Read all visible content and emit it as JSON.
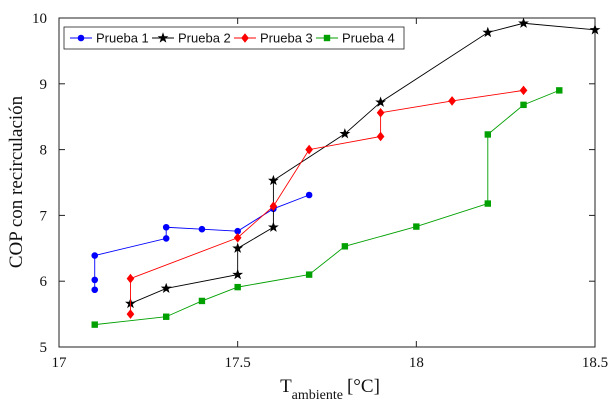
{
  "chart_data": {
    "type": "line",
    "xlabel": "T",
    "xlabel_subscript": "ambiente",
    "xlabel_unit": "[°C]",
    "ylabel": "COP con recirculación",
    "xlim": [
      17,
      18.5
    ],
    "ylim": [
      5,
      10
    ],
    "xticks": [
      "17",
      "17.5",
      "18",
      "18.5"
    ],
    "yticks": [
      "5",
      "6",
      "7",
      "8",
      "9",
      "10"
    ],
    "grid": false,
    "legend_position": "top-left",
    "series": [
      {
        "name": "Prueba 1",
        "color": "#0000ff",
        "marker": "circle",
        "points": [
          [
            17.1,
            5.87
          ],
          [
            17.1,
            6.02
          ],
          [
            17.1,
            6.39
          ],
          [
            17.3,
            6.65
          ],
          [
            17.3,
            6.82
          ],
          [
            17.4,
            6.79
          ],
          [
            17.5,
            6.76
          ],
          [
            17.6,
            7.1
          ],
          [
            17.7,
            7.31
          ]
        ]
      },
      {
        "name": "Prueba 2",
        "color": "#000000",
        "marker": "star",
        "points": [
          [
            17.2,
            5.66
          ],
          [
            17.3,
            5.89
          ],
          [
            17.5,
            6.1
          ],
          [
            17.5,
            6.5
          ],
          [
            17.6,
            6.82
          ],
          [
            17.6,
            7.53
          ],
          [
            17.8,
            8.24
          ],
          [
            17.9,
            8.72
          ],
          [
            18.2,
            9.78
          ],
          [
            18.3,
            9.92
          ],
          [
            18.5,
            9.82
          ]
        ]
      },
      {
        "name": "Prueba 3",
        "color": "#ff0000",
        "marker": "diamond",
        "points": [
          [
            17.2,
            5.5
          ],
          [
            17.2,
            6.04
          ],
          [
            17.5,
            6.66
          ],
          [
            17.6,
            7.14
          ],
          [
            17.7,
            8.0
          ],
          [
            17.9,
            8.2
          ],
          [
            17.9,
            8.56
          ],
          [
            18.1,
            8.74
          ],
          [
            18.3,
            8.9
          ]
        ]
      },
      {
        "name": "Prueba 4",
        "color": "#00a000",
        "marker": "square",
        "points": [
          [
            17.1,
            5.34
          ],
          [
            17.3,
            5.46
          ],
          [
            17.4,
            5.7
          ],
          [
            17.5,
            5.91
          ],
          [
            17.7,
            6.1
          ],
          [
            17.8,
            6.53
          ],
          [
            18.0,
            6.83
          ],
          [
            18.2,
            7.18
          ],
          [
            18.2,
            8.23
          ],
          [
            18.3,
            8.68
          ],
          [
            18.4,
            8.9
          ]
        ]
      }
    ]
  }
}
